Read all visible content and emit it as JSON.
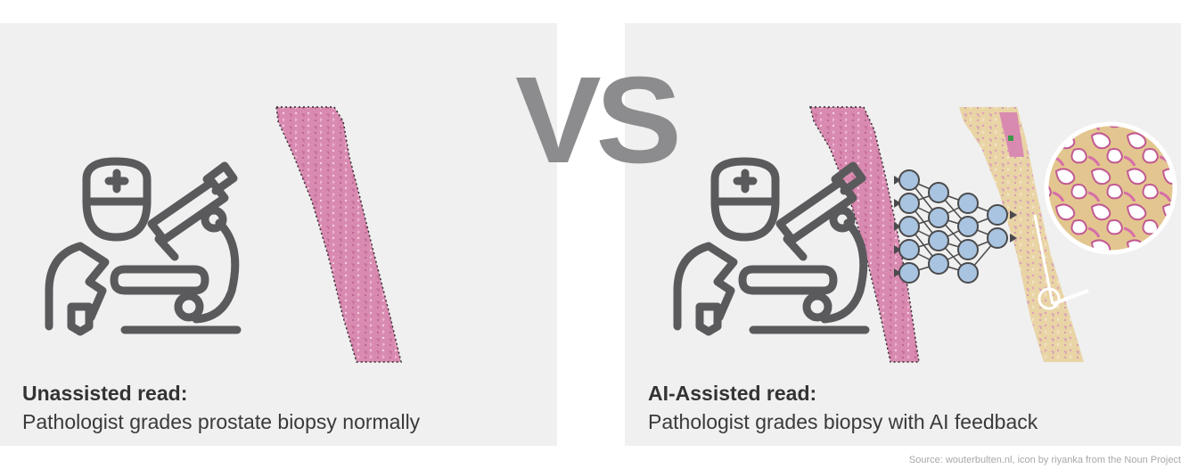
{
  "vs_label": "VS",
  "left_panel": {
    "title": "Unassisted read:",
    "description": "Pathologist grades prostate biopsy normally"
  },
  "right_panel": {
    "title": "AI-Assisted read:",
    "description": "Pathologist grades biopsy with AI feedback"
  },
  "source": "Source: wouterbulten.nl, icon by riyanka from the Noun Project",
  "colors": {
    "panel_bg": "#f0f0f0",
    "icon": "#5a5a5c",
    "tissue": "#d98ab0",
    "tissue_overlay": "#e9d4a6",
    "network_node": "#a9c4e0",
    "vs_text": "#8c8c8e"
  },
  "icons": [
    "pathologist-icon",
    "microscope-icon",
    "neural-network-icon",
    "magnifier-icon"
  ]
}
